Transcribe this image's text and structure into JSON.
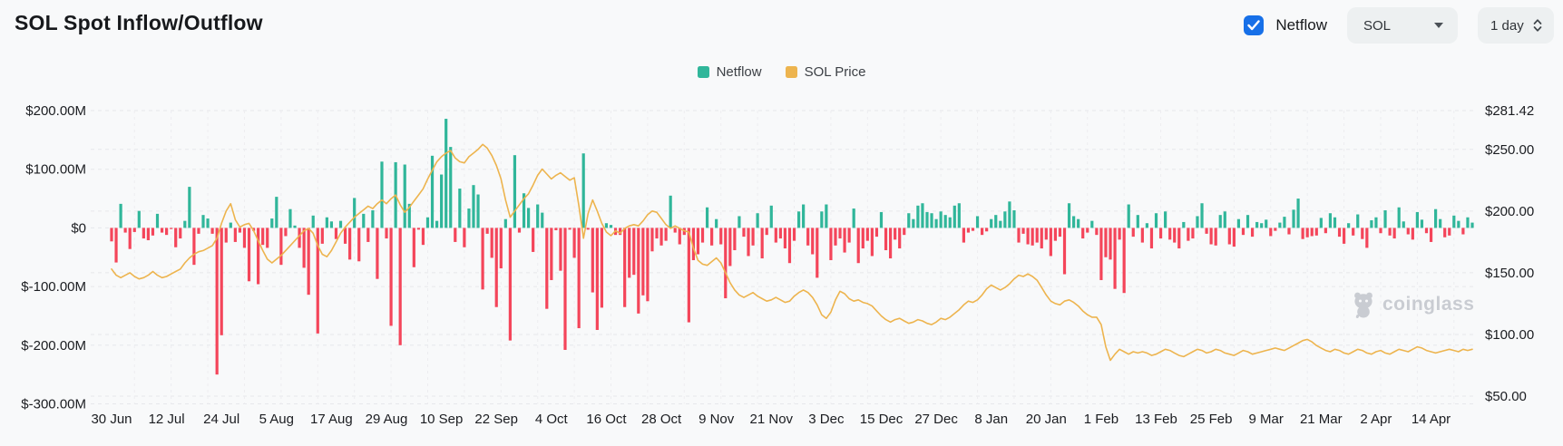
{
  "header": {
    "title": "SOL Spot Inflow/Outflow",
    "netflow_checkbox": {
      "label": "Netflow",
      "checked": true
    },
    "symbol_select": {
      "value": "SOL"
    },
    "interval_select": {
      "value": "1 day"
    }
  },
  "legend": [
    {
      "label": "Netflow",
      "color": "#30b69a"
    },
    {
      "label": "SOL Price",
      "color": "#edb44e"
    }
  ],
  "watermark": {
    "text": "coinglass"
  },
  "colors": {
    "positive_bar": "#30b69a",
    "negative_bar": "#f4455a",
    "price_line": "#edb44e",
    "grid_line": "#e6e7eb",
    "vertical_grid_line": "#ededf0",
    "axis_text": "#1b1d21",
    "background": "#f8f9fa",
    "checkbox_blue": "#1770e8",
    "watermark_gray": "#c9ccd2"
  },
  "chart_data": {
    "type": "bar+line",
    "title": "SOL Spot Inflow/Outflow",
    "grid": true,
    "legend_position": "top-center",
    "x_start_date": "30 Jun",
    "x_labels": [
      "30 Jun",
      "12 Jul",
      "24 Jul",
      "5 Aug",
      "17 Aug",
      "29 Aug",
      "10 Sep",
      "22 Sep",
      "4 Oct",
      "16 Oct",
      "28 Oct",
      "9 Nov",
      "21 Nov",
      "3 Dec",
      "15 Dec",
      "27 Dec",
      "8 Jan",
      "20 Jan",
      "1 Feb",
      "13 Feb",
      "25 Feb",
      "9 Mar",
      "21 Mar",
      "2 Apr",
      "14 Apr"
    ],
    "x_label_every_n_points": 12,
    "left_axis": {
      "series": "Netflow",
      "unit": "USD (millions)",
      "labels": [
        "$200.00M",
        "$100.00M",
        "$0",
        "$-100.00M",
        "$-200.00M",
        "$-300.00M"
      ],
      "values": [
        200,
        100,
        0,
        -100,
        -200,
        -300
      ],
      "ylim": [
        -300,
        200
      ]
    },
    "right_axis": {
      "series": "SOL Price",
      "unit": "USD",
      "labels": [
        "$281.42",
        "$250.00",
        "$200.00",
        "$150.00",
        "$100.00",
        "$50.00"
      ],
      "values": [
        281.42,
        250,
        200,
        150,
        100,
        50
      ],
      "ylim": [
        50,
        281.42
      ]
    },
    "series": [
      {
        "name": "Netflow",
        "type": "bar",
        "axis": "left",
        "unit": "USD millions",
        "values": [
          -23,
          -59,
          41,
          -8,
          -36,
          -7,
          29,
          -18,
          -21,
          -13,
          24,
          -8,
          -12,
          -2,
          -33,
          -18,
          12,
          70,
          -63,
          -10,
          22,
          16,
          -10,
          -250,
          -183,
          -25,
          9,
          -24,
          -8,
          -34,
          -91,
          -5,
          -96,
          -29,
          -34,
          16,
          53,
          -63,
          -14,
          32,
          4,
          -34,
          -68,
          -114,
          21,
          -180,
          -27,
          18,
          11,
          -19,
          12,
          -27,
          -54,
          51,
          -57,
          24,
          -24,
          30,
          -87,
          113,
          -18,
          -167,
          112,
          -200,
          108,
          41,
          -67,
          -3,
          -29,
          18,
          123,
          12,
          91,
          186,
          138,
          -24,
          67,
          -33,
          33,
          73,
          57,
          -105,
          -10,
          -51,
          -135,
          -69,
          15,
          -192,
          124,
          -8,
          59,
          34,
          -41,
          40,
          26,
          -138,
          -89,
          -4,
          -73,
          -208,
          -3,
          -51,
          -171,
          127,
          -3,
          -110,
          -174,
          -136,
          8,
          5,
          -12,
          -12,
          -135,
          -85,
          -80,
          -146,
          -115,
          -125,
          -40,
          -18,
          -30,
          -22,
          55,
          -8,
          -28,
          -12,
          -161,
          -55,
          -45,
          -25,
          35,
          -30,
          15,
          -28,
          -120,
          -65,
          -38,
          20,
          -15,
          -48,
          -30,
          25,
          -52,
          -12,
          38,
          -25,
          -18,
          -35,
          -60,
          -22,
          28,
          40,
          -30,
          -45,
          -85,
          28,
          40,
          -55,
          -30,
          -18,
          -42,
          -25,
          33,
          -60,
          -35,
          -22,
          -48,
          -15,
          27,
          -38,
          -52,
          -20,
          -35,
          -12,
          25,
          15,
          38,
          42,
          27,
          25,
          15,
          28,
          22,
          18,
          38,
          42,
          -25,
          -8,
          -5,
          20,
          -12,
          -6,
          15,
          22,
          12,
          28,
          45,
          30,
          -25,
          -10,
          -28,
          -30,
          -25,
          -35,
          -20,
          -48,
          -22,
          -15,
          -79,
          42,
          20,
          15,
          -18,
          -8,
          12,
          -12,
          -89,
          -50,
          -54,
          -104,
          -20,
          -111,
          40,
          -15,
          22,
          -25,
          8,
          -35,
          25,
          -18,
          28,
          -20,
          -25,
          -35,
          10,
          -22,
          -18,
          20,
          42,
          -10,
          -28,
          -30,
          22,
          28,
          -28,
          -32,
          15,
          -12,
          22,
          -15,
          10,
          8,
          14,
          -14,
          -5,
          9,
          19,
          -11,
          31,
          50,
          -19,
          -16,
          -14,
          -13,
          17,
          -9,
          25,
          18,
          -15,
          -27,
          8,
          -13,
          23,
          -19,
          -34,
          13,
          18,
          -9,
          30,
          -13,
          -18,
          35,
          11,
          -11,
          -20,
          27,
          14,
          -9,
          -24,
          32,
          15,
          -16,
          -13,
          21,
          12,
          -11,
          18,
          9
        ]
      },
      {
        "name": "SOL Price",
        "type": "line",
        "axis": "right",
        "unit": "USD",
        "values": [
          153,
          148,
          146,
          148,
          150,
          147,
          145,
          146,
          148,
          151,
          148,
          146,
          147,
          149,
          151,
          153,
          158,
          162,
          165,
          167,
          168,
          170,
          172,
          178,
          190,
          200,
          206,
          193,
          187,
          189,
          190,
          184,
          176,
          168,
          161,
          158,
          161,
          164,
          168,
          172,
          176,
          180,
          184,
          186,
          182,
          172,
          165,
          163,
          168,
          175,
          182,
          187,
          191,
          195,
          198,
          201,
          204,
          202,
          206,
          209,
          206,
          210,
          213,
          205,
          199,
          203,
          208,
          213,
          218,
          226,
          233,
          240,
          244,
          247,
          249,
          243,
          240,
          239,
          244,
          247,
          250,
          254,
          251,
          245,
          237,
          226,
          209,
          195,
          200,
          205,
          210,
          214,
          221,
          229,
          234,
          230,
          226,
          229,
          231,
          228,
          225,
          227,
          204,
          178,
          198,
          209,
          200,
          190,
          183,
          180,
          184,
          182,
          186,
          188,
          189,
          188,
          192,
          197,
          200,
          199,
          194,
          189,
          186,
          188,
          186,
          184,
          183,
          170,
          160,
          157,
          156,
          159,
          162,
          158,
          150,
          142,
          136,
          132,
          130,
          132,
          134,
          131,
          129,
          127,
          128,
          130,
          128,
          126,
          127,
          131,
          134,
          136,
          134,
          130,
          124,
          116,
          113,
          118,
          128,
          135,
          133,
          129,
          127,
          128,
          126,
          125,
          123,
          119,
          115,
          112,
          110,
          112,
          113,
          111,
          109,
          110,
          112,
          111,
          109,
          108,
          110,
          113,
          112,
          114,
          117,
          120,
          124,
          127,
          126,
          128,
          132,
          137,
          140,
          138,
          136,
          138,
          141,
          145,
          148,
          147,
          149,
          147,
          144,
          138,
          132,
          127,
          125,
          124,
          127,
          128,
          126,
          123,
          119,
          116,
          114,
          114,
          108,
          90,
          79,
          84,
          88,
          86,
          84,
          86,
          85,
          86,
          85,
          83,
          84,
          86,
          88,
          87,
          85,
          83,
          82,
          84,
          86,
          88,
          87,
          85,
          86,
          88,
          87,
          85,
          84,
          83,
          85,
          87,
          86,
          84,
          85,
          86,
          87,
          88,
          89,
          88,
          87,
          89,
          91,
          93,
          95,
          96,
          94,
          91,
          89,
          87,
          86,
          88,
          87,
          85,
          84,
          86,
          88,
          87,
          85,
          84,
          86,
          87,
          85,
          84,
          86,
          88,
          87,
          86,
          88,
          90,
          89,
          87,
          86,
          85,
          86,
          87,
          88,
          87,
          86,
          88,
          87,
          88
        ]
      }
    ]
  }
}
